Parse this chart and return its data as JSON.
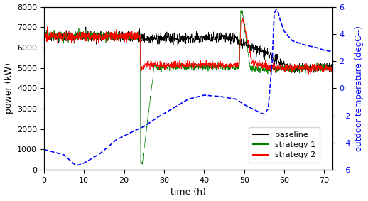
{
  "xlim": [
    0,
    72
  ],
  "ylim_left": [
    0,
    8000
  ],
  "ylim_right": [
    -6,
    6
  ],
  "xticks": [
    0,
    10,
    20,
    30,
    40,
    50,
    60,
    70
  ],
  "yticks_left": [
    0,
    1000,
    2000,
    3000,
    4000,
    5000,
    6000,
    7000,
    8000
  ],
  "yticks_right": [
    -6,
    -4,
    -2,
    0,
    2,
    4,
    6
  ],
  "xlabel": "time (h)",
  "ylabel_left": "power (kW)",
  "ylabel_right": "outdoor temperature (degC--)",
  "legend_labels": [
    "baseline",
    "strategy 1",
    "strategy 2"
  ],
  "legend_colors": [
    "black",
    "green",
    "red"
  ],
  "figsize": [
    5.18,
    2.83
  ],
  "dpi": 100,
  "temp_keypoints": [
    [
      0,
      -4.5
    ],
    [
      5,
      -4.9
    ],
    [
      8,
      -5.7
    ],
    [
      10,
      -5.5
    ],
    [
      14,
      -4.8
    ],
    [
      18,
      -3.8
    ],
    [
      22,
      -3.2
    ],
    [
      25,
      -2.8
    ],
    [
      28,
      -2.2
    ],
    [
      32,
      -1.5
    ],
    [
      36,
      -0.8
    ],
    [
      40,
      -0.5
    ],
    [
      44,
      -0.6
    ],
    [
      48,
      -0.8
    ],
    [
      50,
      -1.2
    ],
    [
      52,
      -1.5
    ],
    [
      54,
      -1.8
    ],
    [
      55,
      -1.9
    ],
    [
      56,
      -1.5
    ],
    [
      57,
      2.0
    ],
    [
      57.5,
      5.5
    ],
    [
      58,
      5.8
    ],
    [
      58.5,
      5.6
    ],
    [
      59,
      5.0
    ],
    [
      60,
      4.2
    ],
    [
      62,
      3.5
    ],
    [
      65,
      3.2
    ],
    [
      68,
      3.0
    ],
    [
      70,
      2.8
    ],
    [
      72,
      2.7
    ]
  ]
}
